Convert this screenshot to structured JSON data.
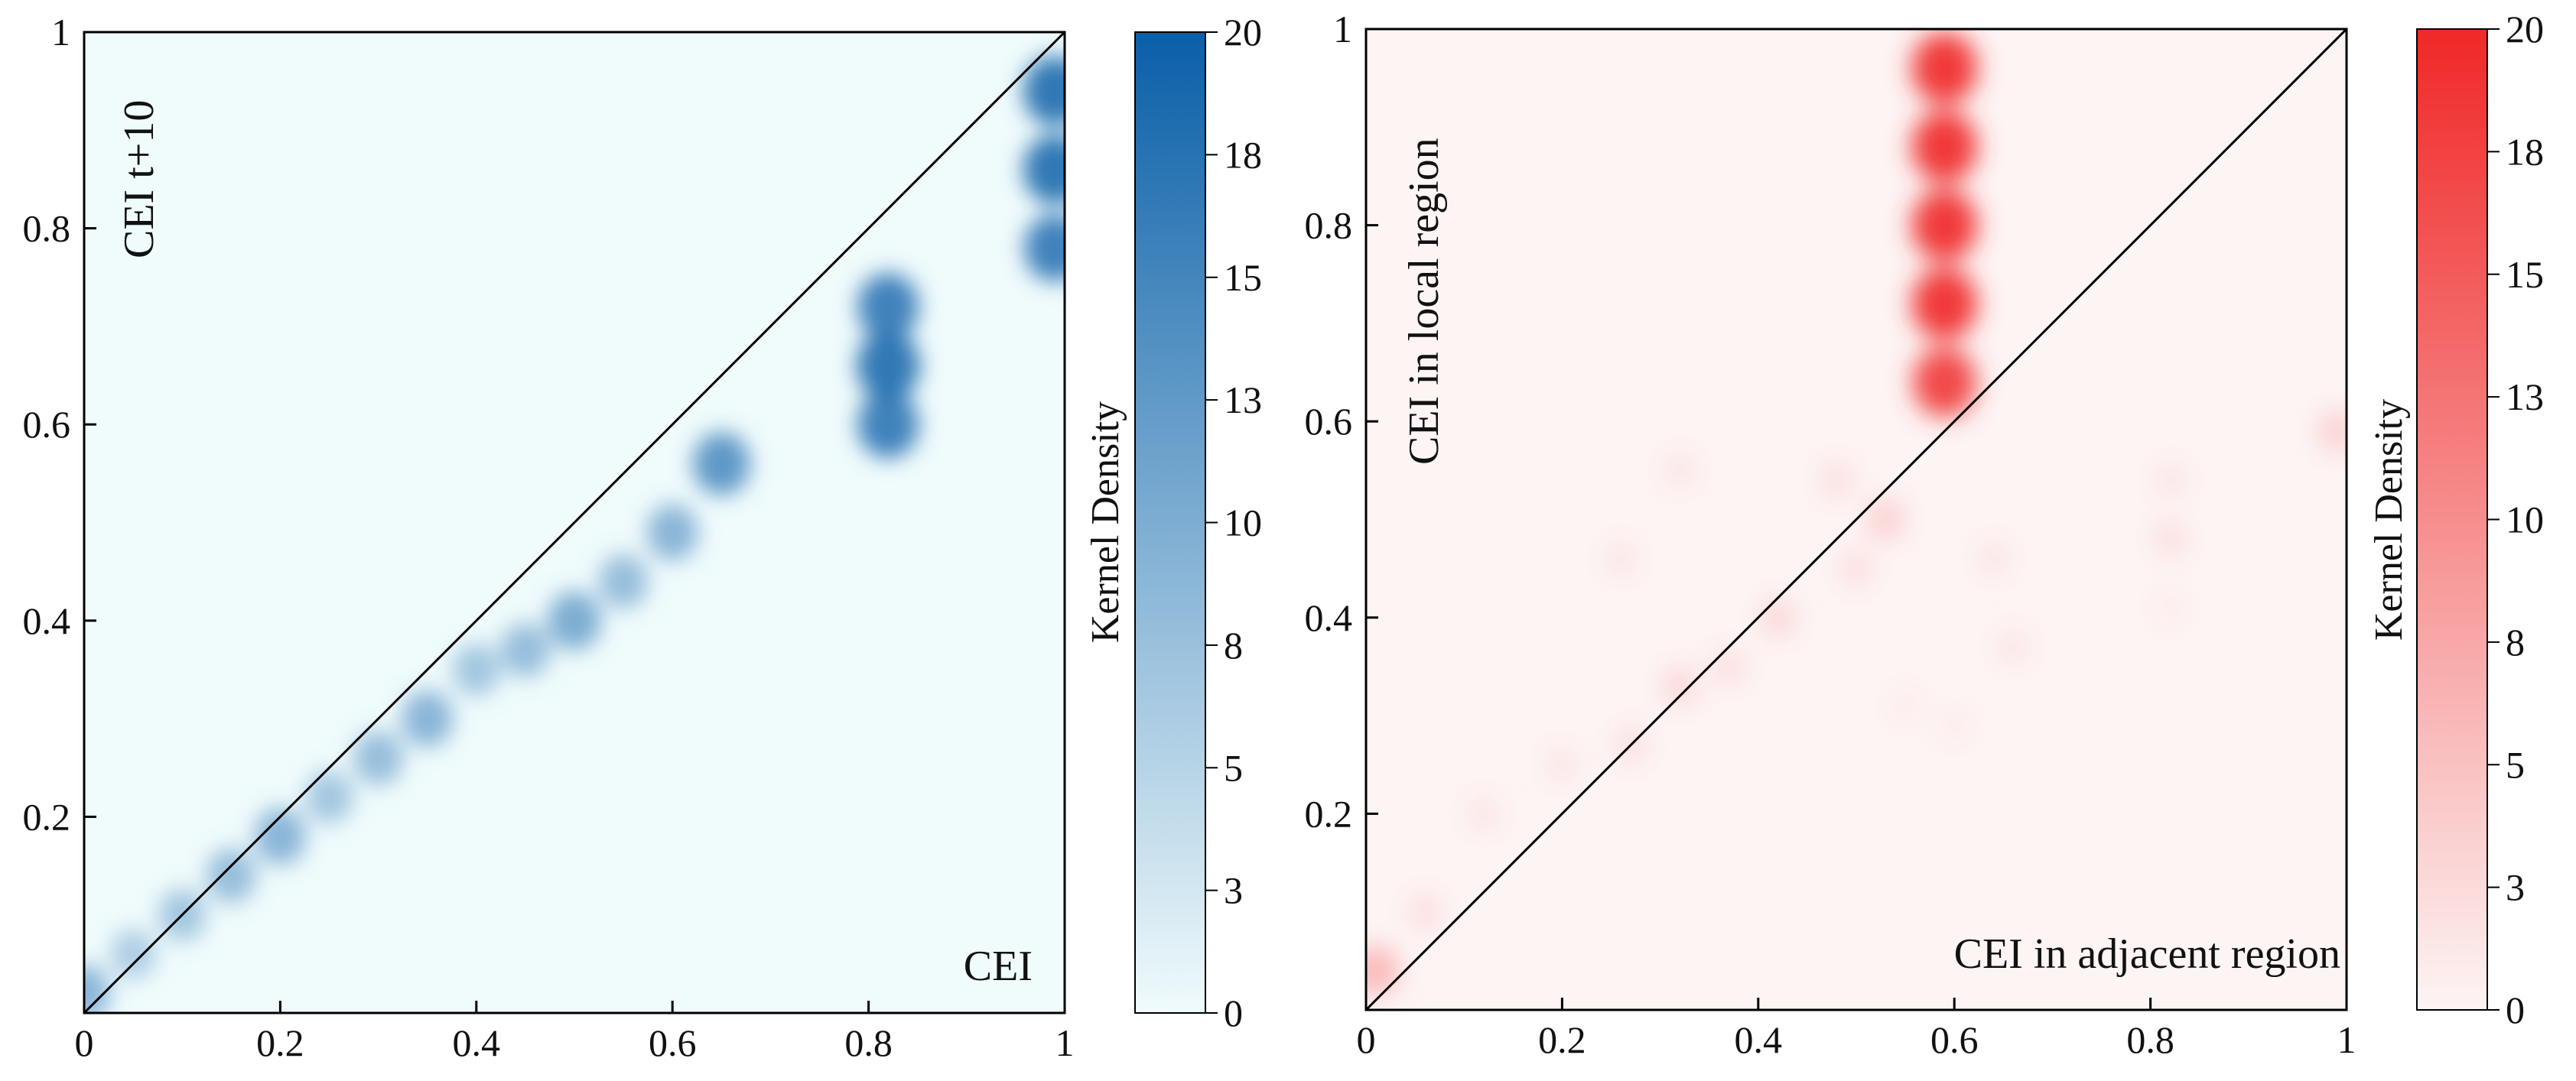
{
  "chart_data": [
    {
      "type": "heatmap",
      "title": "",
      "xlabel": "CEI",
      "ylabel": "CEI t+10",
      "xlim": [
        0,
        1
      ],
      "ylim": [
        0,
        1
      ],
      "x_ticks": [
        "0",
        "0.2",
        "0.4",
        "0.6",
        "0.8",
        "1"
      ],
      "y_ticks": [
        "0.2",
        "0.4",
        "0.6",
        "0.8",
        "1"
      ],
      "diagonal_reference_line": true,
      "colorbar": {
        "label": "Kernel Density",
        "range": [
          0,
          20
        ],
        "ticks": [
          "0",
          "3",
          "5",
          "8",
          "10",
          "13",
          "15",
          "18",
          "20"
        ],
        "color_low": "#f0fbfc",
        "color_high": "#0a5fa8"
      },
      "background_color": "#f0fbfc",
      "density_hotspots": [
        {
          "x": 0.0,
          "y": 0.02,
          "density": 12
        },
        {
          "x": 0.05,
          "y": 0.06,
          "density": 9
        },
        {
          "x": 0.1,
          "y": 0.1,
          "density": 10
        },
        {
          "x": 0.15,
          "y": 0.14,
          "density": 11
        },
        {
          "x": 0.2,
          "y": 0.18,
          "density": 12
        },
        {
          "x": 0.25,
          "y": 0.22,
          "density": 10
        },
        {
          "x": 0.3,
          "y": 0.26,
          "density": 11
        },
        {
          "x": 0.35,
          "y": 0.3,
          "density": 12
        },
        {
          "x": 0.4,
          "y": 0.35,
          "density": 10
        },
        {
          "x": 0.45,
          "y": 0.37,
          "density": 11
        },
        {
          "x": 0.5,
          "y": 0.4,
          "density": 13
        },
        {
          "x": 0.55,
          "y": 0.44,
          "density": 11
        },
        {
          "x": 0.6,
          "y": 0.49,
          "density": 12
        },
        {
          "x": 0.65,
          "y": 0.56,
          "density": 15
        },
        {
          "x": 0.82,
          "y": 0.6,
          "density": 17
        },
        {
          "x": 0.82,
          "y": 0.66,
          "density": 18
        },
        {
          "x": 0.82,
          "y": 0.72,
          "density": 17
        },
        {
          "x": 0.99,
          "y": 0.78,
          "density": 17
        },
        {
          "x": 0.99,
          "y": 0.86,
          "density": 18
        },
        {
          "x": 0.99,
          "y": 0.94,
          "density": 18
        }
      ]
    },
    {
      "type": "heatmap",
      "title": "",
      "xlabel": "CEI in adjacent region",
      "ylabel": "CEI in local region",
      "xlim": [
        0,
        1
      ],
      "ylim": [
        0,
        1
      ],
      "x_ticks": [
        "0",
        "0.2",
        "0.4",
        "0.6",
        "0.8",
        "1"
      ],
      "y_ticks": [
        "0.2",
        "0.4",
        "0.6",
        "0.8",
        "1"
      ],
      "diagonal_reference_line": true,
      "colorbar": {
        "label": "Kernel Density",
        "range": [
          0,
          20
        ],
        "ticks": [
          "0",
          "3",
          "5",
          "8",
          "10",
          "13",
          "15",
          "18",
          "20"
        ],
        "color_low": "#fdf4f4",
        "color_high": "#f02828"
      },
      "background_color": "#fdf4f4",
      "density_hotspots": [
        {
          "x": 0.59,
          "y": 0.64,
          "density": 18
        },
        {
          "x": 0.59,
          "y": 0.72,
          "density": 19
        },
        {
          "x": 0.59,
          "y": 0.8,
          "density": 19
        },
        {
          "x": 0.59,
          "y": 0.88,
          "density": 19
        },
        {
          "x": 0.59,
          "y": 0.96,
          "density": 19
        },
        {
          "x": 0.01,
          "y": 0.04,
          "density": 9
        },
        {
          "x": 0.06,
          "y": 0.1,
          "density": 4
        },
        {
          "x": 0.12,
          "y": 0.2,
          "density": 3
        },
        {
          "x": 0.2,
          "y": 0.25,
          "density": 3
        },
        {
          "x": 0.27,
          "y": 0.27,
          "density": 4
        },
        {
          "x": 0.32,
          "y": 0.33,
          "density": 5
        },
        {
          "x": 0.37,
          "y": 0.35,
          "density": 4
        },
        {
          "x": 0.42,
          "y": 0.4,
          "density": 5
        },
        {
          "x": 0.5,
          "y": 0.45,
          "density": 4
        },
        {
          "x": 0.53,
          "y": 0.5,
          "density": 6
        },
        {
          "x": 0.48,
          "y": 0.54,
          "density": 4
        },
        {
          "x": 0.32,
          "y": 0.55,
          "density": 3
        },
        {
          "x": 0.26,
          "y": 0.46,
          "density": 3
        },
        {
          "x": 0.64,
          "y": 0.46,
          "density": 3
        },
        {
          "x": 0.66,
          "y": 0.37,
          "density": 3
        },
        {
          "x": 0.82,
          "y": 0.48,
          "density": 4
        },
        {
          "x": 0.82,
          "y": 0.54,
          "density": 3
        },
        {
          "x": 0.82,
          "y": 0.41,
          "density": 2
        },
        {
          "x": 0.99,
          "y": 0.59,
          "density": 6
        },
        {
          "x": 0.6,
          "y": 0.29,
          "density": 2
        },
        {
          "x": 0.55,
          "y": 0.31,
          "density": 2
        }
      ]
    }
  ]
}
